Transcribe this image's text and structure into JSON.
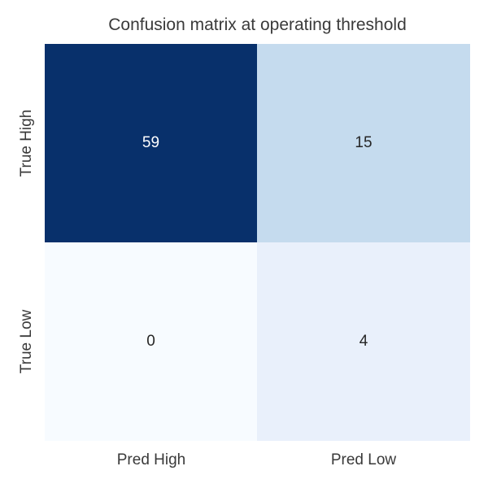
{
  "figure": {
    "background": "#ffffff",
    "text_color": "#3a3a3a"
  },
  "chart_data": {
    "type": "heatmap",
    "title": "Confusion matrix at operating threshold",
    "x_tick_labels": [
      "Pred High",
      "Pred Low"
    ],
    "y_tick_labels": [
      "True High",
      "True Low"
    ],
    "values": [
      [
        59,
        15
      ],
      [
        0,
        4
      ]
    ],
    "colormap": "Blues",
    "color_range": [
      0,
      59
    ],
    "legend": "none",
    "grid": "off"
  },
  "cells": [
    {
      "row": "True High",
      "col": "Pred High",
      "value": "59",
      "bg": "#08306b",
      "fg": "#ffffff"
    },
    {
      "row": "True High",
      "col": "Pred Low",
      "value": "15",
      "bg": "#c5dbee",
      "fg": "#262626"
    },
    {
      "row": "True Low",
      "col": "Pred High",
      "value": "0",
      "bg": "#f7fbff",
      "fg": "#262626"
    },
    {
      "row": "True Low",
      "col": "Pred Low",
      "value": "4",
      "bg": "#e9f0fb",
      "fg": "#262626"
    }
  ]
}
